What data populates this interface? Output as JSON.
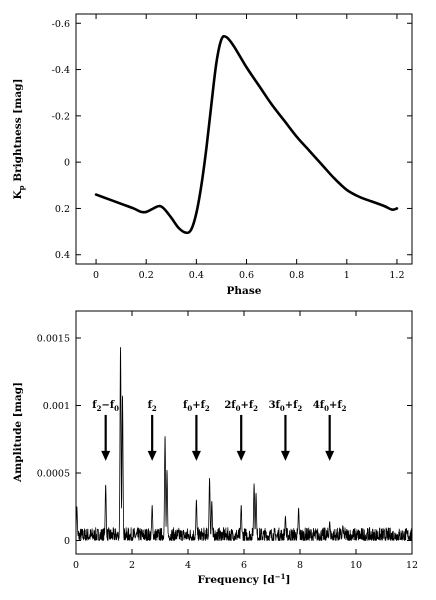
{
  "chart_data": [
    {
      "type": "line",
      "title": "",
      "xlabel": "Phase",
      "ylabel": {
        "main": "K",
        "sub": "p",
        "rest": " Brightness [mag]"
      },
      "xlim": [
        -0.08,
        1.26
      ],
      "ylim": [
        0.44,
        -0.64
      ],
      "y_inverted": true,
      "xticks": [
        0,
        0.2,
        0.4,
        0.6,
        0.8,
        1,
        1.2
      ],
      "xtick_labels": [
        "0",
        "0.2",
        "0.4",
        "0.6",
        "0.8",
        "1",
        "1.2"
      ],
      "yticks": [
        -0.6,
        -0.4,
        -0.2,
        0,
        0.2,
        0.4
      ],
      "ytick_labels": [
        "-0.6",
        "-0.4",
        "-0.2",
        "0",
        "0.2",
        "0.4"
      ],
      "grid": false,
      "series": [
        {
          "x": [
            0.0,
            0.05,
            0.1,
            0.15,
            0.18,
            0.2,
            0.22,
            0.25,
            0.27,
            0.3,
            0.33,
            0.36,
            0.38,
            0.4,
            0.42,
            0.44,
            0.46,
            0.48,
            0.5,
            0.52,
            0.55,
            0.6,
            0.65,
            0.7,
            0.75,
            0.8,
            0.85,
            0.9,
            0.95,
            1.0,
            1.05,
            1.1,
            1.15,
            1.18,
            1.2
          ],
          "y": [
            0.14,
            0.16,
            0.18,
            0.2,
            0.215,
            0.215,
            0.205,
            0.19,
            0.2,
            0.24,
            0.285,
            0.305,
            0.29,
            0.22,
            0.1,
            -0.06,
            -0.25,
            -0.43,
            -0.53,
            -0.54,
            -0.5,
            -0.41,
            -0.33,
            -0.25,
            -0.18,
            -0.11,
            -0.05,
            0.01,
            0.07,
            0.12,
            0.15,
            0.17,
            0.19,
            0.205,
            0.2
          ]
        }
      ]
    },
    {
      "type": "line",
      "title": "",
      "xlabel": {
        "main": "Frequency [d",
        "sup": "−1",
        "rest": "]"
      },
      "ylabel": "Amplitude [mag]",
      "xlim": [
        0,
        12
      ],
      "ylim": [
        -0.0001,
        0.0017
      ],
      "xticks": [
        0,
        2,
        4,
        6,
        8,
        10,
        12
      ],
      "xtick_labels": [
        "0",
        "2",
        "4",
        "6",
        "8",
        "10",
        "12"
      ],
      "yticks": [
        0,
        0.0005,
        0.001,
        0.0015
      ],
      "ytick_labels": [
        "0",
        "0.0005",
        "0.001",
        "0.0015"
      ],
      "grid": false,
      "peaks": [
        {
          "x": 0.03,
          "y": 0.00025
        },
        {
          "x": 1.06,
          "y": 0.00041
        },
        {
          "x": 1.59,
          "y": 0.00143
        },
        {
          "x": 1.66,
          "y": 0.00107
        },
        {
          "x": 2.72,
          "y": 0.00026
        },
        {
          "x": 3.18,
          "y": 0.00077
        },
        {
          "x": 3.25,
          "y": 0.00052
        },
        {
          "x": 4.3,
          "y": 0.0003
        },
        {
          "x": 4.77,
          "y": 0.00046
        },
        {
          "x": 4.85,
          "y": 0.00029
        },
        {
          "x": 5.9,
          "y": 0.00026
        },
        {
          "x": 6.36,
          "y": 0.00042
        },
        {
          "x": 6.43,
          "y": 0.00035
        },
        {
          "x": 7.48,
          "y": 0.00018
        },
        {
          "x": 7.95,
          "y": 0.00024
        },
        {
          "x": 9.06,
          "y": 0.00014
        },
        {
          "x": 9.53,
          "y": 0.00011
        }
      ],
      "noise_level": 6e-05,
      "annotations": [
        {
          "label_parts": [
            [
              "f",
              ""
            ],
            [
              "2",
              "sub"
            ],
            [
              "−f",
              ""
            ],
            [
              "0",
              "sub"
            ]
          ],
          "x": 1.06,
          "label_y": 0.00098,
          "arrow_top": 0.00093,
          "arrow_tip": 0.00059
        },
        {
          "label_parts": [
            [
              "f",
              ""
            ],
            [
              "2",
              "sub"
            ]
          ],
          "x": 2.72,
          "label_y": 0.00098,
          "arrow_top": 0.00093,
          "arrow_tip": 0.00059
        },
        {
          "label_parts": [
            [
              "f",
              ""
            ],
            [
              "0",
              "sub"
            ],
            [
              "+f",
              ""
            ],
            [
              "2",
              "sub"
            ]
          ],
          "x": 4.3,
          "label_y": 0.00098,
          "arrow_top": 0.00093,
          "arrow_tip": 0.00059
        },
        {
          "label_parts": [
            [
              "2f",
              ""
            ],
            [
              "0",
              "sub"
            ],
            [
              "+f",
              ""
            ],
            [
              "2",
              "sub"
            ]
          ],
          "x": 5.9,
          "label_y": 0.00098,
          "arrow_top": 0.00093,
          "arrow_tip": 0.00059
        },
        {
          "label_parts": [
            [
              "3f",
              ""
            ],
            [
              "0",
              "sub"
            ],
            [
              "+f",
              ""
            ],
            [
              "2",
              "sub"
            ]
          ],
          "x": 7.48,
          "label_y": 0.00098,
          "arrow_top": 0.00093,
          "arrow_tip": 0.00059
        },
        {
          "label_parts": [
            [
              "4f",
              ""
            ],
            [
              "0",
              "sub"
            ],
            [
              "+f",
              ""
            ],
            [
              "2",
              "sub"
            ]
          ],
          "x": 9.06,
          "label_y": 0.00098,
          "arrow_top": 0.00093,
          "arrow_tip": 0.00059
        }
      ]
    }
  ]
}
